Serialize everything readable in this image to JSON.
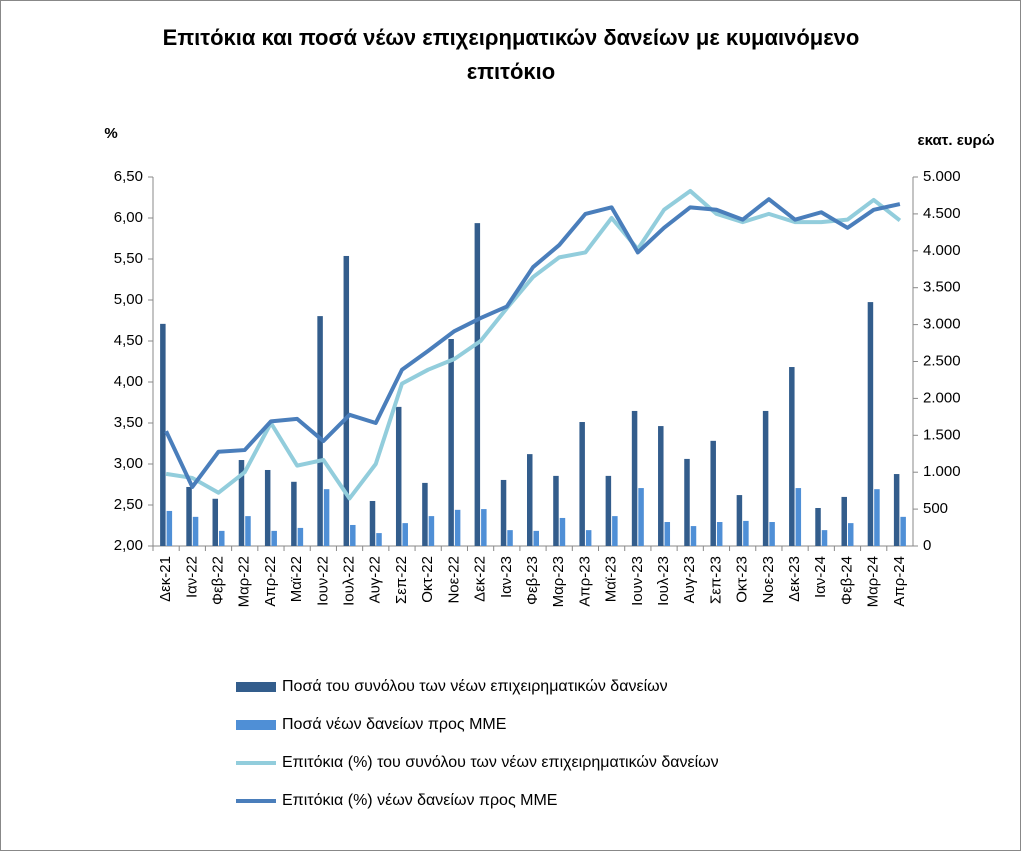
{
  "chart_data": {
    "type": "combo",
    "title": "Επιτόκια και ποσά νέων επιχειρηματικών δανείων με κυμαινόμενο επιτόκιο",
    "y_label": "%",
    "y2_label": "εκατ. ευρώ",
    "categories": [
      "Δεκ-21",
      "Ιαν-22",
      "Φεβ-22",
      "Μαρ-22",
      "Απρ-22",
      "Μαϊ-22",
      "Ιουν-22",
      "Ιουλ-22",
      "Αυγ-22",
      "Σεπ-22",
      "Οκτ-22",
      "Νοε-22",
      "Δεκ-22",
      "Ιαν-23",
      "Φεβ-23",
      "Μαρ-23",
      "Απρ-23",
      "Μαϊ-23",
      "Ιουν-23",
      "Ιουλ-23",
      "Αυγ-23",
      "Σεπ-23",
      "Οκτ-23",
      "Νοε-23",
      "Δεκ-23",
      "Ιαν-24",
      "Φεβ-24",
      "Μαρ-24",
      "Απρ-24"
    ],
    "series": [
      {
        "name": "Ποσά του συνόλου των νέων επιχειρηματικών δανείων",
        "type": "bar",
        "axis": "y2",
        "color": "#335d8c",
        "values": [
          3010,
          800,
          640,
          1165,
          1030,
          870,
          3115,
          3930,
          610,
          1885,
          855,
          2805,
          4375,
          895,
          1245,
          950,
          1680,
          950,
          1830,
          1625,
          1180,
          1425,
          690,
          1830,
          2425,
          515,
          665,
          3305,
          975
        ]
      },
      {
        "name": "Ποσά νέων δανείων προς ΜΜΕ",
        "type": "bar",
        "axis": "y2",
        "color": "#4f8fd6",
        "values": [
          475,
          395,
          205,
          405,
          205,
          245,
          770,
          285,
          175,
          310,
          405,
          490,
          500,
          215,
          205,
          380,
          215,
          405,
          785,
          325,
          270,
          325,
          340,
          325,
          785,
          215,
          310,
          770,
          395
        ]
      },
      {
        "name": "Επιτόκια (%) του συνόλου των νέων επιχειρηματικών δανείων",
        "type": "line",
        "axis": "y",
        "color": "#92cddc",
        "values": [
          2.88,
          2.83,
          2.65,
          2.9,
          3.5,
          2.98,
          3.05,
          2.58,
          3.0,
          3.98,
          4.15,
          4.28,
          4.5,
          4.9,
          5.28,
          5.52,
          5.58,
          6.0,
          5.62,
          6.1,
          6.33,
          6.05,
          5.95,
          6.05,
          5.95,
          5.95,
          5.98,
          6.22,
          5.97
        ]
      },
      {
        "name": "Επιτόκια (%) νέων δανείων προς ΜΜΕ",
        "type": "line",
        "axis": "y",
        "color": "#4a7ebb",
        "values": [
          3.4,
          2.72,
          3.15,
          3.17,
          3.52,
          3.55,
          3.28,
          3.6,
          3.5,
          4.15,
          4.38,
          4.62,
          4.78,
          4.92,
          5.4,
          5.67,
          6.05,
          6.13,
          5.58,
          5.88,
          6.13,
          6.1,
          5.98,
          6.23,
          5.98,
          6.07,
          5.88,
          6.1,
          6.17
        ]
      }
    ],
    "ylim": [
      2,
      6.5
    ],
    "yticks": [
      {
        "value": 2,
        "label": "2,00"
      },
      {
        "value": 2.5,
        "label": "2,50"
      },
      {
        "value": 3,
        "label": "3,00"
      },
      {
        "value": 3.5,
        "label": "3,50"
      },
      {
        "value": 4,
        "label": "4,00"
      },
      {
        "value": 4.5,
        "label": "4,50"
      },
      {
        "value": 5,
        "label": "5,00"
      },
      {
        "value": 5.5,
        "label": "5,50"
      },
      {
        "value": 6,
        "label": "6,00"
      },
      {
        "value": 6.5,
        "label": "6,50"
      }
    ],
    "y2lim": [
      0,
      5000
    ],
    "y2ticks": [
      0,
      500,
      {
        "value": 1000,
        "label": "1.000"
      },
      {
        "value": 1500,
        "label": "1.500"
      },
      {
        "value": 2000,
        "label": "2.000"
      },
      {
        "value": 2500,
        "label": "2.500"
      },
      {
        "value": 3000,
        "label": "3.000"
      },
      {
        "value": 3500,
        "label": "3.500"
      },
      {
        "value": 4000,
        "label": "4.000"
      },
      {
        "value": 4500,
        "label": "4.500"
      },
      {
        "value": 5000,
        "label": "5.000"
      }
    ],
    "grid": false
  }
}
